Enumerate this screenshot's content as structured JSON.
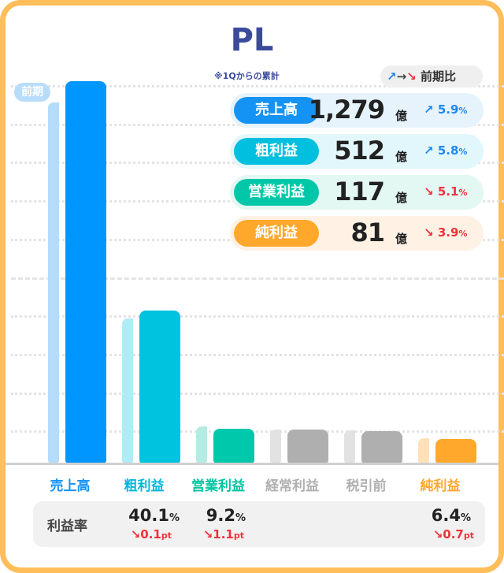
{
  "title": "PL",
  "subtitle": "※1Qからの累計",
  "prev_tag": "前期",
  "legend": {
    "label": "前期比",
    "up_icon": "arrow-up-right",
    "flat_icon": "arrow-right",
    "down_icon": "arrow-down-right"
  },
  "colors": {
    "up": "#1E88F0",
    "down": "#F0323C"
  },
  "kpis": [
    {
      "label": "売上高",
      "value": "1,279",
      "unit": "億",
      "change": "5.9",
      "pct": "%",
      "dir": "up",
      "pill": "#1593F5",
      "bg": "#E6F3FD"
    },
    {
      "label": "粗利益",
      "value": "512",
      "unit": "億",
      "change": "5.8",
      "pct": "%",
      "dir": "up",
      "pill": "#00BFDF",
      "bg": "#E2F7FB"
    },
    {
      "label": "営業利益",
      "value": "117",
      "unit": "億",
      "change": "5.1",
      "pct": "%",
      "dir": "down",
      "pill": "#00C7A8",
      "bg": "#E3F7F3"
    },
    {
      "label": "純利益",
      "value": "81",
      "unit": "億",
      "change": "3.9",
      "pct": "%",
      "dir": "down",
      "pill": "#FFA82B",
      "bg": "#FFF2E5"
    }
  ],
  "chart_data": {
    "type": "bar",
    "categories": [
      "売上高",
      "粗利益",
      "営業利益",
      "経常利益",
      "税引前",
      "純利益"
    ],
    "series": [
      {
        "name": "前期",
        "values": [
          1208,
          484,
          123,
          113,
          110,
          84
        ]
      },
      {
        "values": [
          1279,
          512,
          117,
          113,
          108,
          81
        ]
      }
    ],
    "unit": "億",
    "colors_current": [
      "#0096FF",
      "#00C3E0",
      "#00C8AA",
      "#AFAFAF",
      "#AFAFAF",
      "#FFA82B"
    ],
    "colors_prev": [
      "#B4DCFC",
      "#B0ECF5",
      "#B4ECE3",
      "#E2E2E2",
      "#E2E2E2",
      "#FFE0B8"
    ],
    "label_colors": [
      "#1593F5",
      "#00B8DA",
      "#00C3A0",
      "#B0B0B0",
      "#B0B0B0",
      "#FFA82B"
    ],
    "ylim": [
      0,
      1279
    ],
    "grid": true
  },
  "ratio": {
    "label": "利益率",
    "items": [
      {
        "value": "40.1",
        "pct": "%",
        "change": "0.1",
        "unit": "pt"
      },
      {
        "value": "9.2",
        "pct": "%",
        "change": "1.1",
        "unit": "pt"
      },
      {
        "value": "6.4",
        "pct": "%",
        "change": "0.7",
        "unit": "pt"
      }
    ]
  }
}
